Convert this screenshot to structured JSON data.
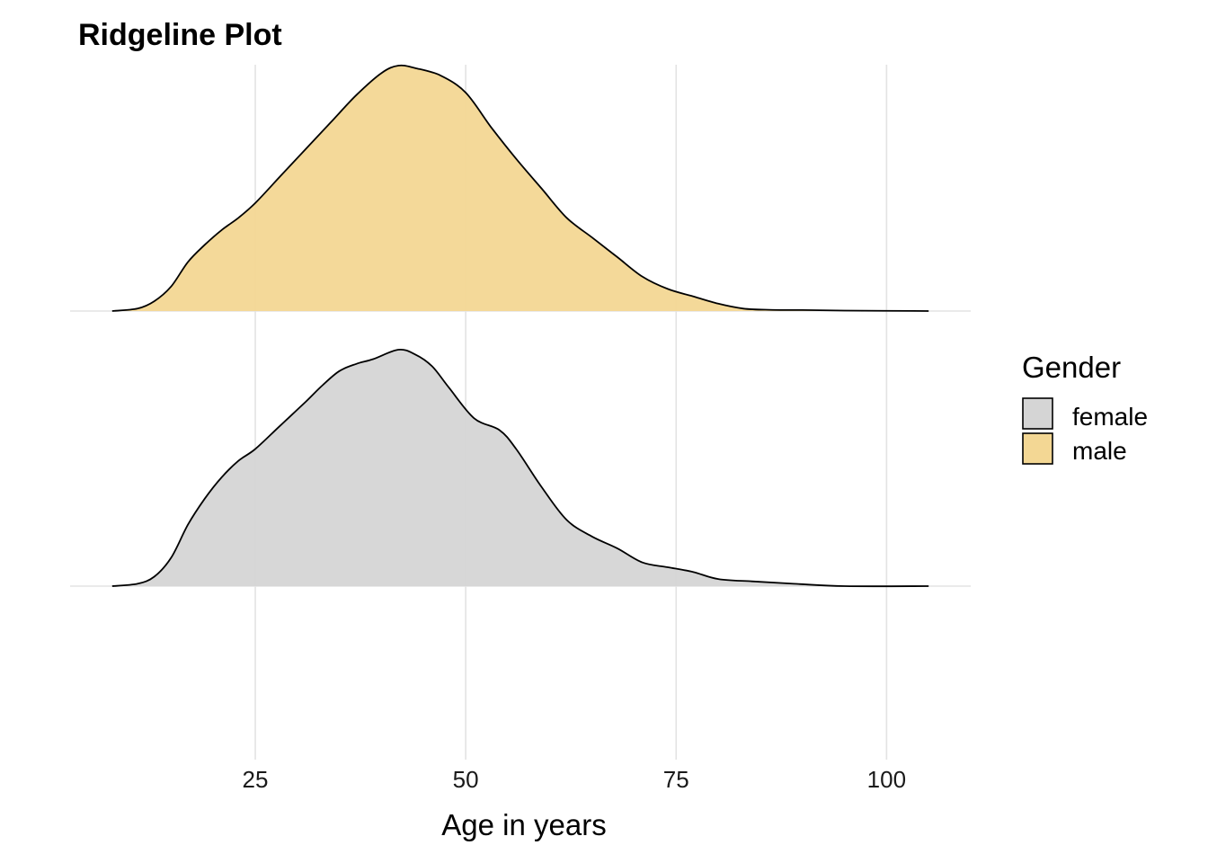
{
  "chart_data": {
    "type": "ridgeline",
    "title": "Ridgeline Plot",
    "xlabel": "Age in years",
    "ylabel": "",
    "xlim": [
      3,
      110
    ],
    "x_ticks": [
      25,
      50,
      75,
      100
    ],
    "x_tick_labels": [
      "25",
      "50",
      "75",
      "100"
    ],
    "grid": true,
    "legend": {
      "title": "Gender",
      "position": "right"
    },
    "series": [
      {
        "name": "male",
        "color": "#f3d794",
        "stroke": "#000000",
        "x": [
          8,
          11,
          13,
          15,
          17,
          19,
          21,
          23,
          25,
          28,
          31,
          34,
          37,
          40,
          42,
          44,
          47,
          50,
          53,
          56,
          59,
          62,
          65,
          68,
          71,
          74,
          77,
          80,
          83,
          86,
          90,
          95,
          105
        ],
        "density": [
          0.0,
          0.01,
          0.04,
          0.1,
          0.2,
          0.27,
          0.33,
          0.38,
          0.44,
          0.55,
          0.66,
          0.77,
          0.88,
          0.97,
          1.0,
          0.99,
          0.96,
          0.89,
          0.75,
          0.62,
          0.5,
          0.38,
          0.3,
          0.22,
          0.14,
          0.09,
          0.06,
          0.03,
          0.01,
          0.005,
          0.004,
          0.002,
          0.0
        ]
      },
      {
        "name": "female",
        "color": "#d5d5d5",
        "stroke": "#000000",
        "x": [
          8,
          11,
          13,
          15,
          17,
          19,
          21,
          23,
          25,
          28,
          31,
          33,
          35,
          37,
          39,
          42,
          44,
          46,
          48,
          51,
          54,
          56,
          59,
          62,
          65,
          68,
          71,
          74,
          77,
          80,
          84,
          89,
          95,
          105
        ],
        "density": [
          0.0,
          0.01,
          0.04,
          0.12,
          0.26,
          0.37,
          0.46,
          0.53,
          0.58,
          0.68,
          0.78,
          0.85,
          0.91,
          0.94,
          0.96,
          1.0,
          0.98,
          0.93,
          0.84,
          0.71,
          0.66,
          0.58,
          0.42,
          0.28,
          0.21,
          0.16,
          0.1,
          0.08,
          0.06,
          0.03,
          0.02,
          0.01,
          0.0,
          0.0
        ]
      }
    ]
  }
}
